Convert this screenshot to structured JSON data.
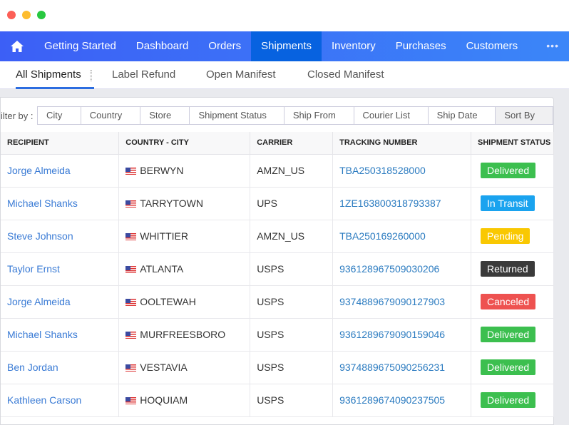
{
  "window": {
    "controls": [
      "close",
      "minimize",
      "maximize"
    ]
  },
  "nav": {
    "items": [
      "Getting Started",
      "Dashboard",
      "Orders",
      "Shipments",
      "Inventory",
      "Purchases",
      "Customers"
    ],
    "active": "Shipments",
    "more": "•••"
  },
  "subtabs": [
    "All Shipments",
    "Label Refund",
    "Open Manifest",
    "Closed Manifest"
  ],
  "filter": {
    "label": "ilter by :",
    "items": [
      "City",
      "Country",
      "Store",
      "Shipment Status",
      "Ship From",
      "Courier List",
      "Ship Date",
      "Sort By"
    ]
  },
  "table": {
    "headers": [
      "RECIPIENT",
      "COUNTRY - CITY",
      "CARRIER",
      "TRACKING NUMBER",
      "SHIPMENT STATUS"
    ],
    "rows": [
      [
        "Jorge Almeida",
        "BERWYN",
        "AMZN_US",
        "TBA250318528000",
        "Delivered"
      ],
      [
        "Michael Shanks",
        "TARRYTOWN",
        "UPS",
        "1ZE163800318793387",
        "In Transit"
      ],
      [
        "Steve Johnson",
        "WHITTIER",
        "AMZN_US",
        "TBA250169260000",
        "Pending"
      ],
      [
        "Taylor Ernst",
        "ATLANTA",
        "USPS",
        "9361289675090302​06",
        "Returned"
      ],
      [
        "Jorge Almeida",
        "OOLTEWAH",
        "USPS",
        "9374889679090127903",
        "Canceled"
      ],
      [
        "Michael Shanks",
        "MURFREESBORO",
        "USPS",
        "9361289679090159046",
        "Delivered"
      ],
      [
        "Ben Jordan",
        "VESTAVIA",
        "USPS",
        "9374889675090256231",
        "Delivered"
      ],
      [
        "Kathleen Carson",
        "HOQUIAM",
        "USPS",
        "9361289674090237505",
        "Delivered"
      ]
    ]
  },
  "status_colors": {
    "Delivered": "#3cbf4f",
    "In Transit": "#1aa3ef",
    "Pending": "#f9c802",
    "Returned": "#3a3a3a",
    "Canceled": "#ee5250"
  }
}
